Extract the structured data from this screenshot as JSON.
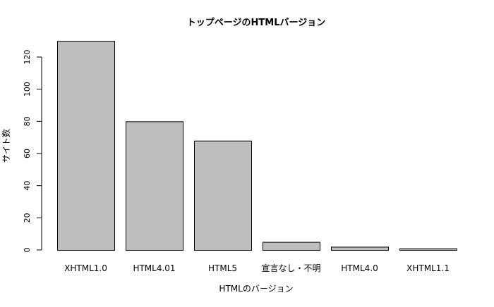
{
  "chart_data": {
    "type": "bar",
    "title": "トップページのHTMLバージョン",
    "xlabel": "HTMLのバージョン",
    "ylabel": "サイト数",
    "categories": [
      "XHTML1.0",
      "HTML4.01",
      "HTML5",
      "宣言なし・不明",
      "HTML4.0",
      "XHTML1.1"
    ],
    "values": [
      130,
      80,
      68,
      5,
      2,
      1
    ],
    "ylim": [
      0,
      130
    ],
    "yticks": [
      0,
      20,
      40,
      60,
      80,
      100,
      120
    ],
    "grid": false,
    "legend": "none",
    "colors": {
      "bar_fill": "#bebebe",
      "bar_stroke": "#000000",
      "axis": "#000000"
    }
  }
}
